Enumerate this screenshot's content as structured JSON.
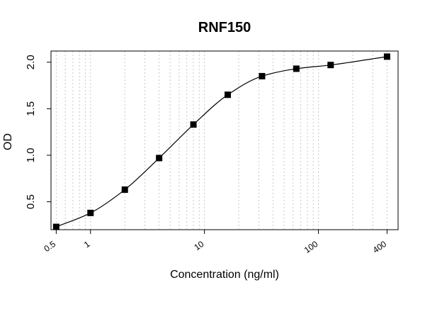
{
  "chart_data": {
    "type": "scatter",
    "title": "RNF150",
    "xlabel": "Concentration (ng/ml)",
    "ylabel": "OD",
    "x_scale": "log",
    "xlim": [
      0.45,
      500
    ],
    "ylim": [
      0.2,
      2.12
    ],
    "x_ticks": [
      0.5,
      1,
      10,
      100,
      400
    ],
    "x_tick_labels": [
      "0.5",
      "1",
      "10",
      "100",
      "400"
    ],
    "y_ticks": [
      0.5,
      1.0,
      1.5,
      2.0
    ],
    "y_tick_labels": [
      "0.5",
      "1.0",
      "1.5",
      "2.0"
    ],
    "grid": "vertical dotted",
    "marker": "square",
    "series": [
      {
        "x": [
          0.5,
          1,
          2,
          4,
          8,
          16,
          32,
          64,
          128,
          400
        ],
        "y": [
          0.23,
          0.38,
          0.63,
          0.97,
          1.33,
          1.65,
          1.85,
          1.93,
          1.97,
          2.06
        ]
      }
    ],
    "fit_curve": true
  }
}
